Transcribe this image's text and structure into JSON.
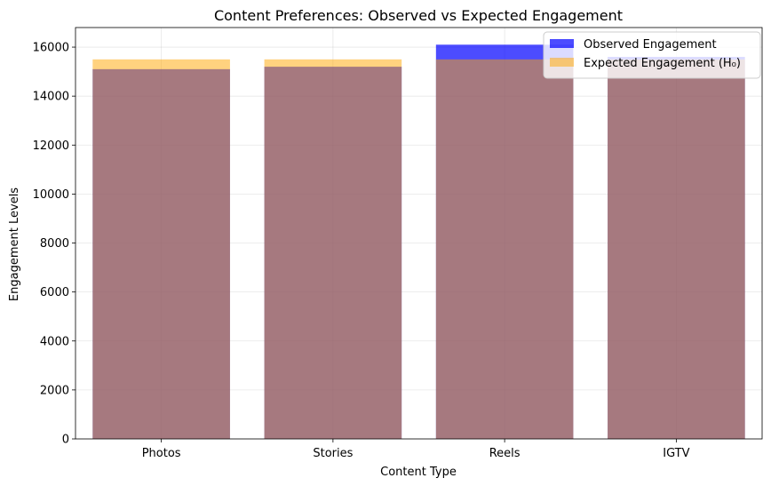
{
  "chart_data": {
    "type": "bar",
    "title": "Content Preferences: Observed vs Expected Engagement",
    "xlabel": "Content Type",
    "ylabel": "Engagement Levels",
    "categories": [
      "Photos",
      "Stories",
      "Reels",
      "IGTV"
    ],
    "series": [
      {
        "name": "Observed Engagement",
        "values": [
          15100,
          15200,
          16100,
          15600
        ],
        "color": "#0000ff",
        "opacity": 0.7
      },
      {
        "name": "Expected Engagement (H₀)",
        "values": [
          15500,
          15500,
          15500,
          15500
        ],
        "color": "#ffa500",
        "opacity": 0.5
      }
    ],
    "ylim": [
      0,
      16800
    ],
    "yticks": [
      0,
      2000,
      4000,
      6000,
      8000,
      10000,
      12000,
      14000,
      16000
    ],
    "grid": true,
    "legend_position": "top-right"
  }
}
